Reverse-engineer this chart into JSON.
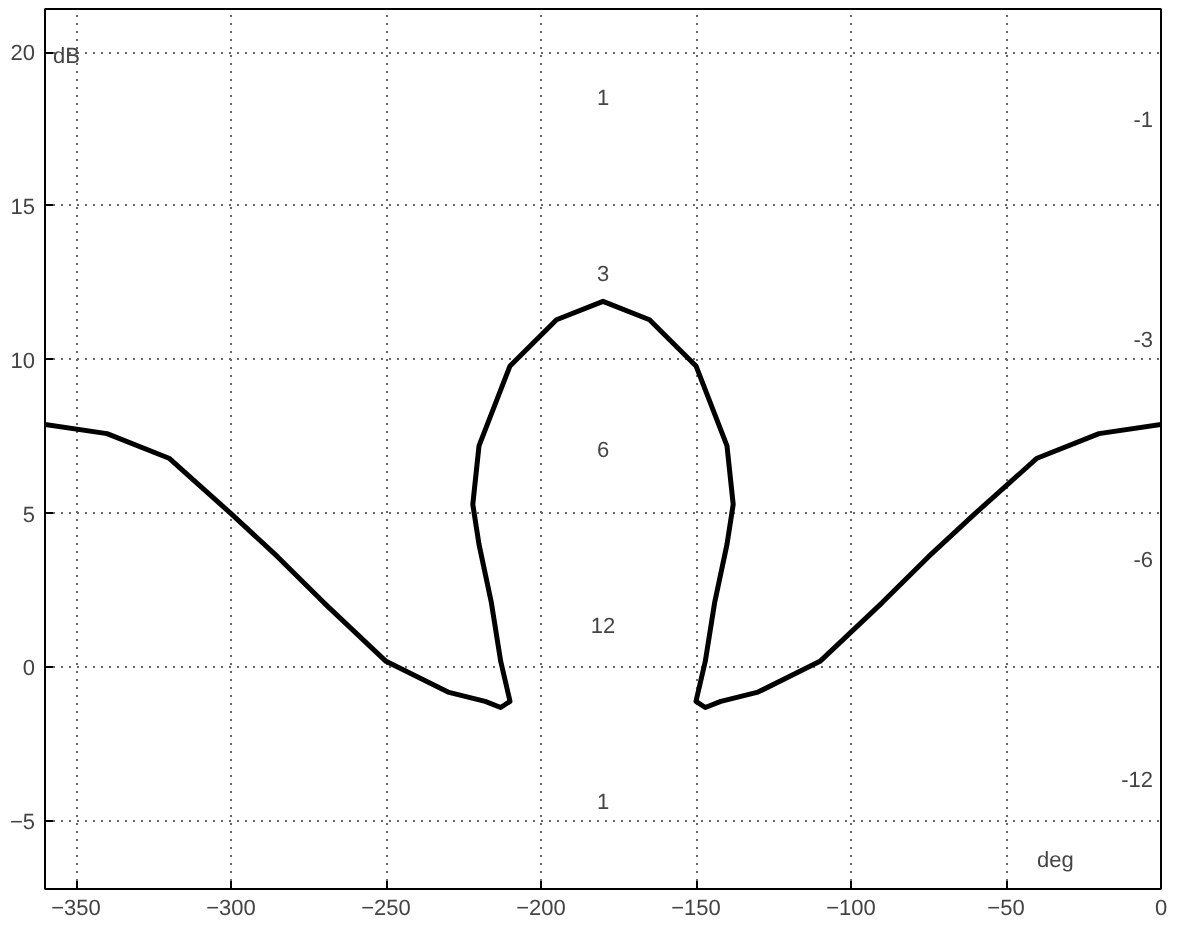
{
  "chart_data": {
    "type": "line",
    "xlabel": "deg",
    "ylabel": "dB",
    "xlim": [
      -360,
      0
    ],
    "ylim": [
      -7.2,
      21.4
    ],
    "xticks": [
      -350,
      -300,
      -250,
      -200,
      -150,
      -100,
      -50,
      0
    ],
    "yticks": [
      -5,
      0,
      5,
      10,
      15,
      20
    ],
    "grid": true,
    "line_style": "solid",
    "marker": "none",
    "series": [
      {
        "color": "#000000",
        "x": [
          -360,
          -340,
          -320,
          -300,
          -285,
          -270,
          -250,
          -230,
          -218,
          -213,
          -210,
          -213,
          -216,
          -220,
          -222,
          -220,
          -215,
          -210,
          -195,
          -180,
          -165,
          -150,
          -145,
          -140,
          -138,
          -140,
          -144,
          -147,
          -150,
          -147,
          -142,
          -130,
          -110,
          -90,
          -75,
          -60,
          -40,
          -20,
          0
        ],
        "values": [
          7.9,
          7.6,
          6.8,
          5.0,
          3.6,
          2.1,
          0.2,
          -0.8,
          -1.1,
          -1.3,
          -1.1,
          0.2,
          2.1,
          4.0,
          5.3,
          7.2,
          8.5,
          9.8,
          11.3,
          11.9,
          11.3,
          9.8,
          8.5,
          7.2,
          5.3,
          4.0,
          2.1,
          0.2,
          -1.1,
          -1.3,
          -1.1,
          -0.8,
          0.2,
          2.1,
          3.6,
          5.0,
          6.8,
          7.6,
          7.9
        ]
      }
    ],
    "annotations": [
      "1",
      "3",
      "6",
      "12",
      "1",
      "-1",
      "-3",
      "-6",
      "-12"
    ]
  }
}
